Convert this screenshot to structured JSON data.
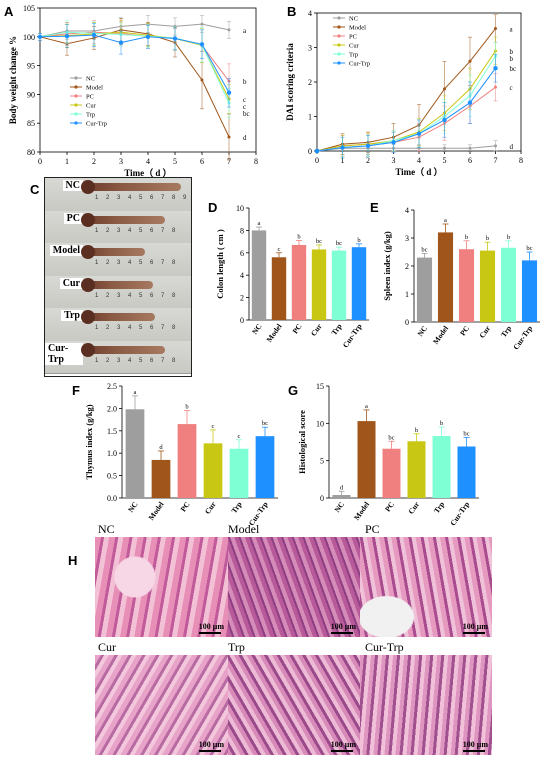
{
  "panels": {
    "A": "A",
    "B": "B",
    "C": "C",
    "D": "D",
    "E": "E",
    "F": "F",
    "G": "G",
    "H": "H"
  },
  "colors": {
    "NC": "#9e9e9e",
    "Model": "#a0561a",
    "PC": "#f08080",
    "Cur": "#c8c814",
    "Trp": "#7fffd4",
    "Cur-Trp": "#1e90ff"
  },
  "chart_data": [
    {
      "id": "A",
      "type": "line",
      "xlabel": "Time（ d ）",
      "ylabel": "Body weight change %",
      "xlim": [
        0,
        8
      ],
      "ylim": [
        80,
        105
      ],
      "xticks": [
        0,
        1,
        2,
        3,
        4,
        5,
        6,
        7,
        8
      ],
      "yticks": [
        80,
        85,
        90,
        95,
        100,
        105
      ],
      "x": [
        0,
        1,
        2,
        3,
        4,
        5,
        6,
        7
      ],
      "legend_position": "left",
      "series": [
        {
          "name": "NC",
          "values": [
            100,
            101,
            101,
            101.8,
            102.2,
            101.8,
            102.2,
            101.2
          ],
          "err": [
            0.6,
            1.5,
            1.5,
            1.5,
            1.5,
            1.5,
            1.5,
            1.5
          ],
          "label": "a"
        },
        {
          "name": "Model",
          "values": [
            100,
            98.8,
            99.8,
            101.2,
            100.5,
            99,
            92.5,
            82.6
          ],
          "err": [
            0.6,
            2,
            2,
            2,
            2,
            2.5,
            5,
            4
          ],
          "label": "d"
        },
        {
          "name": "PC",
          "values": [
            100,
            100.5,
            100.8,
            100.6,
            100,
            99.8,
            98.5,
            92.3
          ],
          "err": [
            0.6,
            2,
            2,
            2,
            2,
            2,
            3,
            3
          ],
          "label": "b"
        },
        {
          "name": "Cur",
          "values": [
            100,
            100.2,
            100.5,
            100.8,
            100.3,
            99.7,
            98.5,
            89.2
          ],
          "err": [
            0.6,
            2,
            2,
            2,
            2,
            2,
            3,
            2.5
          ],
          "label": "c"
        },
        {
          "name": "Trp",
          "values": [
            100,
            100.8,
            100.6,
            100.4,
            100.1,
            99.8,
            98.6,
            88.5
          ],
          "err": [
            0.6,
            2,
            2,
            2,
            2,
            2,
            3,
            2.5
          ],
          "label": "c"
        },
        {
          "name": "Cur-Trp",
          "values": [
            100,
            100.1,
            100.3,
            99,
            100,
            99.7,
            98.7,
            90.3
          ],
          "err": [
            0.6,
            2,
            2,
            2,
            2,
            2,
            2.5,
            2.5
          ],
          "label": "bc"
        }
      ]
    },
    {
      "id": "B",
      "type": "line",
      "xlabel": "Time（ d ）",
      "ylabel": "DAI scoring criteria",
      "xlim": [
        0,
        8
      ],
      "ylim": [
        0,
        4
      ],
      "xticks": [
        0,
        1,
        2,
        3,
        4,
        5,
        6,
        7,
        8
      ],
      "yticks": [
        0,
        1,
        2,
        3,
        4
      ],
      "x": [
        0,
        1,
        2,
        3,
        4,
        5,
        6,
        7
      ],
      "legend_position": "top-left",
      "series": [
        {
          "name": "NC",
          "values": [
            0,
            0.08,
            0.08,
            0.08,
            0.08,
            0.08,
            0.08,
            0.15
          ],
          "err": [
            0.05,
            0.1,
            0.1,
            0.1,
            0.1,
            0.1,
            0.1,
            0.15
          ],
          "label": "d"
        },
        {
          "name": "Model",
          "values": [
            0,
            0.2,
            0.25,
            0.4,
            0.75,
            1.8,
            2.6,
            3.55
          ],
          "err": [
            0.05,
            0.3,
            0.3,
            0.4,
            0.6,
            0.8,
            0.7,
            0.4
          ],
          "label": "a"
        },
        {
          "name": "PC",
          "values": [
            0,
            0.15,
            0.2,
            0.25,
            0.4,
            0.8,
            1.3,
            1.85
          ],
          "err": [
            0.05,
            0.3,
            0.3,
            0.3,
            0.4,
            0.5,
            0.5,
            0.4
          ],
          "label": "c"
        },
        {
          "name": "Cur",
          "values": [
            0,
            0.15,
            0.2,
            0.3,
            0.55,
            1.1,
            1.8,
            2.9
          ],
          "err": [
            0.05,
            0.3,
            0.3,
            0.3,
            0.4,
            0.5,
            0.6,
            0.4
          ],
          "label": "b"
        },
        {
          "name": "Trp",
          "values": [
            0,
            0.1,
            0.15,
            0.3,
            0.5,
            1.0,
            1.6,
            2.75
          ],
          "err": [
            0.05,
            0.3,
            0.3,
            0.3,
            0.4,
            0.5,
            0.6,
            0.4
          ],
          "label": "b"
        },
        {
          "name": "Cur-Trp",
          "values": [
            0,
            0.1,
            0.15,
            0.25,
            0.5,
            0.9,
            1.4,
            2.4
          ],
          "err": [
            0.05,
            0.3,
            0.3,
            0.3,
            0.4,
            0.5,
            0.6,
            0.4
          ],
          "label": "bc"
        }
      ]
    },
    {
      "id": "D",
      "type": "bar",
      "ylabel": "Colon length ( cm )",
      "categories": [
        "NC",
        "Model",
        "PC",
        "Cur",
        "Trp",
        "Cur-Trp"
      ],
      "values": [
        8.0,
        5.6,
        6.7,
        6.3,
        6.2,
        6.5
      ],
      "err": [
        0.3,
        0.4,
        0.4,
        0.4,
        0.3,
        0.3
      ],
      "letters": [
        "a",
        "c",
        "b",
        "bc",
        "bc",
        "b"
      ],
      "ylim": [
        0,
        10
      ],
      "yticks": [
        0,
        2,
        4,
        6,
        8,
        10
      ]
    },
    {
      "id": "E",
      "type": "bar",
      "ylabel": "Spleen index (g/kg)",
      "categories": [
        "NC",
        "Model",
        "PC",
        "Cur",
        "Trp",
        "Cur-Trp"
      ],
      "values": [
        2.3,
        3.2,
        2.6,
        2.55,
        2.65,
        2.2
      ],
      "err": [
        0.15,
        0.3,
        0.3,
        0.3,
        0.25,
        0.3
      ],
      "letters": [
        "bc",
        "a",
        "b",
        "b",
        "b",
        "bc"
      ],
      "ylim": [
        0,
        4
      ],
      "yticks": [
        0,
        1,
        2,
        3,
        4
      ]
    },
    {
      "id": "F",
      "type": "bar",
      "ylabel": "Thymus index (g/kg)",
      "categories": [
        "NC",
        "Model",
        "PC",
        "Cur",
        "Trp",
        "Cur-Trp"
      ],
      "values": [
        1.98,
        0.85,
        1.65,
        1.22,
        1.1,
        1.38
      ],
      "err": [
        0.3,
        0.2,
        0.3,
        0.3,
        0.2,
        0.2
      ],
      "letters": [
        "a",
        "d",
        "b",
        "c",
        "c",
        "bc"
      ],
      "ylim": [
        0,
        2.5
      ],
      "yticks": [
        0.0,
        0.5,
        1.0,
        1.5,
        2.0,
        2.5
      ]
    },
    {
      "id": "G",
      "type": "bar",
      "ylabel": "Histological score",
      "categories": [
        "NC",
        "Model",
        "PC",
        "Cur",
        "Trp",
        "Cur-Trp"
      ],
      "values": [
        0.4,
        10.3,
        6.6,
        7.6,
        8.3,
        6.9
      ],
      "err": [
        0.5,
        1.5,
        1.0,
        1.0,
        1.2,
        1.2
      ],
      "letters": [
        "d",
        "a",
        "bc",
        "b",
        "b",
        "bc"
      ],
      "ylim": [
        0,
        15
      ],
      "yticks": [
        0,
        5,
        10,
        15
      ]
    }
  ],
  "colon_photo": {
    "groups": [
      "NC",
      "PC",
      "Model",
      "Cur",
      "Trp",
      "Cur-Trp"
    ],
    "ruler": [
      "1",
      "2",
      "3",
      "4",
      "5",
      "6",
      "7",
      "8"
    ],
    "ruler_nc": [
      "1",
      "2",
      "3",
      "4",
      "5",
      "6",
      "7",
      "8",
      "9"
    ]
  },
  "histology": {
    "labels": [
      "NC",
      "Model",
      "PC",
      "Cur",
      "Trp",
      "Cur-Trp"
    ],
    "scale_bar": "100 μm"
  }
}
